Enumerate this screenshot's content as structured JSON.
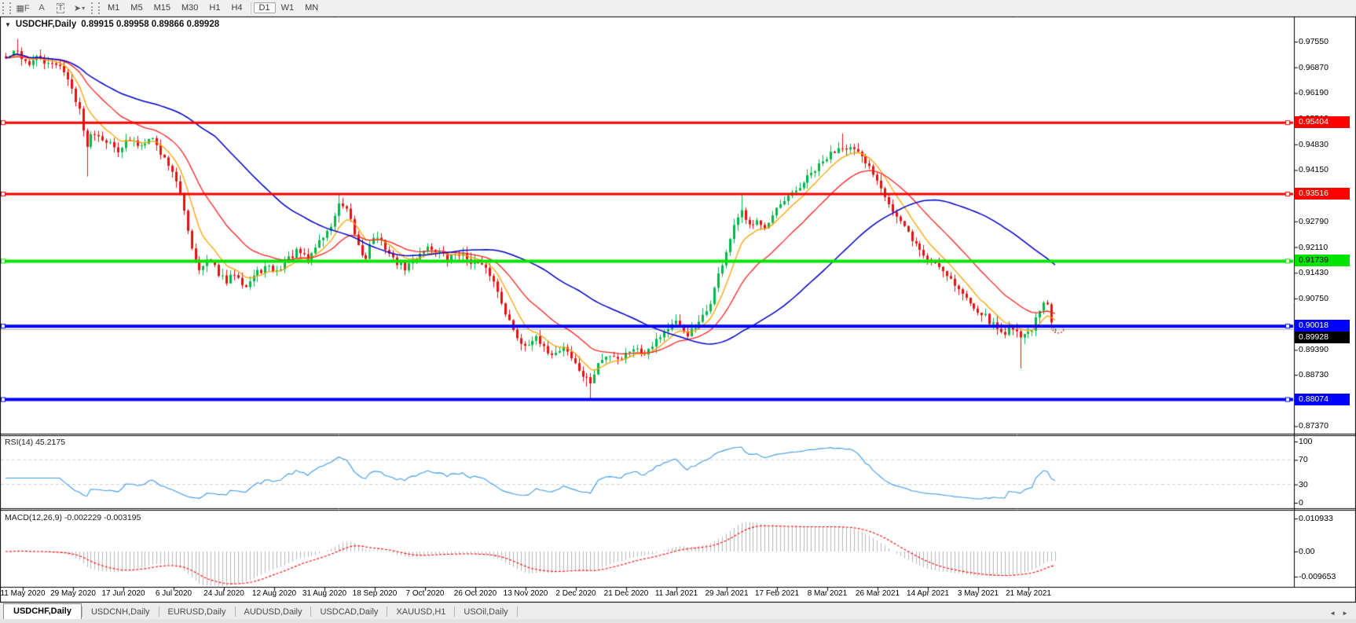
{
  "toolbar": {
    "tools": [
      {
        "name": "fibonacci-lines-tool",
        "glyph": "▦F"
      },
      {
        "name": "text-tool",
        "glyph": "A"
      },
      {
        "name": "text-label-tool",
        "glyph": "T",
        "boxed": true
      },
      {
        "name": "arrows-tool",
        "glyph": "➤",
        "caret": "▾"
      }
    ],
    "timeframes": [
      "M1",
      "M5",
      "M15",
      "M30",
      "H1",
      "H4",
      "D1",
      "W1",
      "MN"
    ],
    "active_timeframe": "D1"
  },
  "chart": {
    "title": "USDCHF,Daily",
    "ohlc_text": "0.89915 0.89958 0.89866 0.89928",
    "dropdown_icon": "▼"
  },
  "chart_data": {
    "type": "candlestick",
    "symbol": "USDCHF",
    "timeframe": "Daily",
    "display_ohlc": {
      "open": 0.89915,
      "high": 0.89958,
      "low": 0.89866,
      "close": 0.89928
    },
    "price_axis": {
      "ticks": [
        "0.97550",
        "0.96870",
        "0.96190",
        "0.95510",
        "0.94830",
        "0.94150",
        "0.93470",
        "0.92790",
        "0.92110",
        "0.91430",
        "0.90750",
        "0.90070",
        "0.89390",
        "0.88730",
        "0.88050",
        "0.87370"
      ],
      "range_top": 0.98195,
      "range_bottom": 0.8717
    },
    "horizontal_lines": [
      {
        "price": 0.95404,
        "label": "0.95404",
        "color": "#ff0000",
        "text_color": "#ffffff",
        "width": 3
      },
      {
        "price": 0.93516,
        "label": "0.93516",
        "color": "#ff0000",
        "text_color": "#ffffff",
        "width": 3
      },
      {
        "price": 0.91739,
        "label": "0.91739",
        "color": "#00e400",
        "text_color": "#000000",
        "width": 4
      },
      {
        "price": 0.90018,
        "label": "0.90018",
        "color": "#0000ff",
        "text_color": "#ffffff",
        "width": 4
      },
      {
        "price": 0.88074,
        "label": "0.88074",
        "color": "#0000ff",
        "text_color": "#ffffff",
        "width": 4
      }
    ],
    "current_price": {
      "value": 0.89928,
      "label": "0.89928",
      "line_color": "#b8b8b8",
      "label_bg": "#000000",
      "text_color": "#ffffff"
    },
    "candles": {
      "count": 272,
      "up_color": "#00b848",
      "down_color": "#e81010",
      "noise_seed": 42,
      "noise_amp": 0.0009,
      "wick_amp": 0.0018,
      "close_path_anchors": [
        [
          0.0,
          0.971
        ],
        [
          0.01,
          0.973
        ],
        [
          0.021,
          0.9695
        ],
        [
          0.032,
          0.9715
        ],
        [
          0.041,
          0.969
        ],
        [
          0.051,
          0.97
        ],
        [
          0.061,
          0.964
        ],
        [
          0.07,
          0.958
        ],
        [
          0.076,
          0.9475
        ],
        [
          0.083,
          0.952
        ],
        [
          0.094,
          0.9498
        ],
        [
          0.106,
          0.9468
        ],
        [
          0.117,
          0.9495
        ],
        [
          0.128,
          0.9478
        ],
        [
          0.138,
          0.951
        ],
        [
          0.148,
          0.9458
        ],
        [
          0.158,
          0.942
        ],
        [
          0.168,
          0.933
        ],
        [
          0.178,
          0.92
        ],
        [
          0.186,
          0.9148
        ],
        [
          0.193,
          0.918
        ],
        [
          0.203,
          0.9142
        ],
        [
          0.21,
          0.9115
        ],
        [
          0.219,
          0.9148
        ],
        [
          0.228,
          0.9105
        ],
        [
          0.238,
          0.914
        ],
        [
          0.248,
          0.9158
        ],
        [
          0.258,
          0.9145
        ],
        [
          0.269,
          0.918
        ],
        [
          0.278,
          0.92
        ],
        [
          0.288,
          0.9175
        ],
        [
          0.297,
          0.9222
        ],
        [
          0.308,
          0.9255
        ],
        [
          0.318,
          0.9325
        ],
        [
          0.326,
          0.93
        ],
        [
          0.335,
          0.922
        ],
        [
          0.342,
          0.9178
        ],
        [
          0.35,
          0.924
        ],
        [
          0.36,
          0.9218
        ],
        [
          0.369,
          0.9178
        ],
        [
          0.38,
          0.9155
        ],
        [
          0.39,
          0.918
        ],
        [
          0.4,
          0.9212
        ],
        [
          0.411,
          0.9202
        ],
        [
          0.421,
          0.9178
        ],
        [
          0.43,
          0.9198
        ],
        [
          0.441,
          0.9178
        ],
        [
          0.451,
          0.9165
        ],
        [
          0.462,
          0.9138
        ],
        [
          0.472,
          0.907
        ],
        [
          0.483,
          0.899
        ],
        [
          0.493,
          0.895
        ],
        [
          0.504,
          0.8972
        ],
        [
          0.513,
          0.894
        ],
        [
          0.523,
          0.8928
        ],
        [
          0.532,
          0.895
        ],
        [
          0.543,
          0.8898
        ],
        [
          0.552,
          0.8862
        ],
        [
          0.558,
          0.8852
        ],
        [
          0.565,
          0.8905
        ],
        [
          0.576,
          0.8928
        ],
        [
          0.586,
          0.8915
        ],
        [
          0.597,
          0.8948
        ],
        [
          0.607,
          0.8928
        ],
        [
          0.617,
          0.8958
        ],
        [
          0.628,
          0.899
        ],
        [
          0.638,
          0.901
        ],
        [
          0.649,
          0.898
        ],
        [
          0.659,
          0.9
        ],
        [
          0.67,
          0.9052
        ],
        [
          0.68,
          0.9145
        ],
        [
          0.691,
          0.924
        ],
        [
          0.7,
          0.931
        ],
        [
          0.707,
          0.9262
        ],
        [
          0.716,
          0.929
        ],
        [
          0.724,
          0.9258
        ],
        [
          0.733,
          0.9302
        ],
        [
          0.743,
          0.9335
        ],
        [
          0.754,
          0.9362
        ],
        [
          0.764,
          0.9395
        ],
        [
          0.775,
          0.9425
        ],
        [
          0.785,
          0.9455
        ],
        [
          0.796,
          0.9482
        ],
        [
          0.807,
          0.947
        ],
        [
          0.817,
          0.944
        ],
        [
          0.826,
          0.9412
        ],
        [
          0.835,
          0.9368
        ],
        [
          0.845,
          0.9305
        ],
        [
          0.856,
          0.9262
        ],
        [
          0.866,
          0.9222
        ],
        [
          0.877,
          0.918
        ],
        [
          0.887,
          0.9168
        ],
        [
          0.897,
          0.914
        ],
        [
          0.908,
          0.9098
        ],
        [
          0.918,
          0.9065
        ],
        [
          0.929,
          0.904
        ],
        [
          0.939,
          0.901
        ],
        [
          0.95,
          0.8982
        ],
        [
          0.96,
          0.9002
        ],
        [
          0.968,
          0.8972
        ],
        [
          0.977,
          0.8992
        ],
        [
          0.984,
          0.903
        ],
        [
          0.99,
          0.9068
        ],
        [
          0.993,
          0.9052
        ],
        [
          0.996,
          0.9012
        ],
        [
          1.0,
          0.89928
        ]
      ],
      "special_wicks": [
        {
          "t": 0.01,
          "high": 0.9762
        },
        {
          "t": 0.076,
          "low": 0.9398
        },
        {
          "t": 0.318,
          "high": 0.9352
        },
        {
          "t": 0.552,
          "low": 0.8842
        },
        {
          "t": 0.558,
          "low": 0.8808
        },
        {
          "t": 0.7,
          "high": 0.9354
        },
        {
          "t": 0.796,
          "high": 0.9512
        },
        {
          "t": 0.968,
          "low": 0.889
        }
      ]
    },
    "moving_averages": [
      {
        "name": "fast-ma",
        "method": "ema",
        "period": 8,
        "color": "#ffa000"
      },
      {
        "name": "medium-ma",
        "method": "ema",
        "period": 22,
        "color": "#ff2020"
      },
      {
        "name": "slow-ma",
        "method": "sma",
        "period": 55,
        "color": "#0000c8"
      }
    ],
    "rsi": {
      "label": "RSI(14) 45.2175",
      "period": 14,
      "current": 45.2175,
      "levels": [
        70,
        30
      ],
      "axis_ticks": [
        "100",
        "70",
        "30",
        "0"
      ],
      "line_color": "#3d9ae8",
      "range": [
        0,
        100
      ]
    },
    "macd": {
      "label": "MACD(12,26,9) -0.002229 -0.003195",
      "fast": 12,
      "slow": 26,
      "signal_period": 9,
      "current_main": -0.002229,
      "current_signal": -0.003195,
      "axis_ticks": [
        "0.010933",
        "0.00",
        "-0.009653"
      ],
      "histogram_color": "#b6b6b6",
      "signal_color": "#ff0000"
    },
    "date_axis": {
      "labels": [
        "11 May 2020",
        "29 May 2020",
        "17 Jun 2020",
        "6 Jul 2020",
        "24 Jul 2020",
        "12 Aug 2020",
        "31 Aug 2020",
        "18 Sep 2020",
        "7 Oct 2020",
        "26 Oct 2020",
        "13 Nov 2020",
        "2 Dec 2020",
        "21 Dec 2020",
        "11 Jan 2021",
        "29 Jan 2021",
        "17 Feb 2021",
        "8 Mar 2021",
        "26 Mar 2021",
        "14 Apr 2021",
        "3 May 2021",
        "21 May 2021"
      ]
    },
    "annotation": {
      "type": "dotted-ellipse",
      "color": "#ff0000",
      "at_price": 0.8993
    }
  },
  "bottom_tabs": {
    "items": [
      {
        "label": "USDCHF,Daily",
        "active": true
      },
      {
        "label": "USDCNH,Daily",
        "active": false
      },
      {
        "label": "EURUSD,Daily",
        "active": false
      },
      {
        "label": "AUDUSD,Daily",
        "active": false
      },
      {
        "label": "USDCAD,Daily",
        "active": false
      },
      {
        "label": "XAUUSD,H1",
        "active": false
      },
      {
        "label": "USOil,Daily",
        "active": false
      }
    ],
    "scroll_left": "◄",
    "scroll_right": "►"
  }
}
